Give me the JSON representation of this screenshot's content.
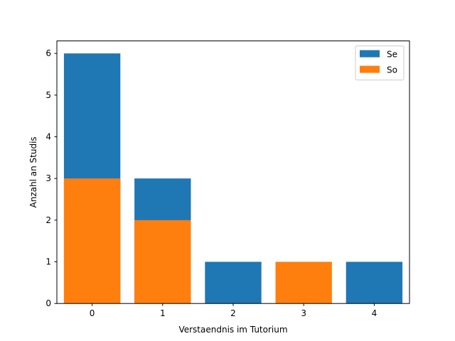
{
  "chart_data": {
    "type": "bar",
    "stacked": "overlay",
    "categories": [
      "0",
      "1",
      "2",
      "3",
      "4"
    ],
    "x": [
      0,
      1,
      2,
      3,
      4
    ],
    "series": [
      {
        "name": "Se",
        "values": [
          6,
          3,
          1,
          0,
          1
        ],
        "color": "#1f77b4"
      },
      {
        "name": "So",
        "values": [
          3,
          2,
          0,
          1,
          0
        ],
        "color": "#ff7f0e"
      }
    ],
    "xlabel": "Verstaendnis im Tutorium",
    "ylabel": "Anzahl an Studis",
    "xlim": [
      -0.5,
      4.5
    ],
    "ylim": [
      0,
      6.3
    ],
    "yticks": [
      0,
      1,
      2,
      3,
      4,
      5,
      6
    ],
    "xticks": [
      0,
      1,
      2,
      3,
      4
    ],
    "grid": false,
    "legend_position": "top-right"
  }
}
